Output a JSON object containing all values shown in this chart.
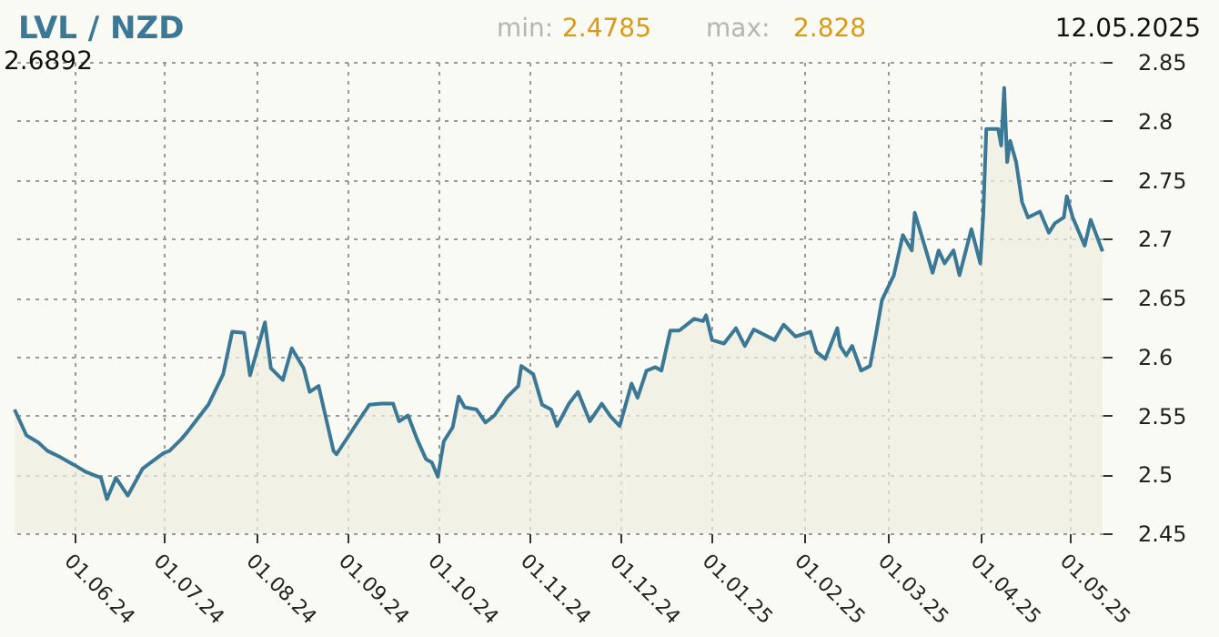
{
  "chart_data": {
    "type": "area",
    "title": "LVL / NZD",
    "annotations": [
      "min: 2.4785",
      "max: 2.828",
      "12.05.2025",
      "2.6892"
    ],
    "x": [
      "2024-05-12",
      "2024-05-16",
      "2024-05-20",
      "2024-05-23",
      "2024-05-27",
      "2024-06-01",
      "2024-06-05",
      "2024-06-10",
      "2024-06-12",
      "2024-06-15",
      "2024-06-19",
      "2024-06-24",
      "2024-07-01",
      "2024-07-03",
      "2024-07-07",
      "2024-07-09",
      "2024-07-12",
      "2024-07-16",
      "2024-07-21",
      "2024-07-24",
      "2024-07-28",
      "2024-07-30",
      "2024-08-04",
      "2024-08-06",
      "2024-08-10",
      "2024-08-13",
      "2024-08-17",
      "2024-08-19",
      "2024-08-22",
      "2024-08-27",
      "2024-08-28",
      "2024-09-04",
      "2024-09-08",
      "2024-09-12",
      "2024-09-16",
      "2024-09-18",
      "2024-09-21",
      "2024-09-24",
      "2024-09-27",
      "2024-09-29",
      "2024-10-01",
      "2024-10-03",
      "2024-10-06",
      "2024-10-08",
      "2024-10-10",
      "2024-10-14",
      "2024-10-17",
      "2024-10-20",
      "2024-10-24",
      "2024-10-28",
      "2024-10-29",
      "2024-11-02",
      "2024-11-05",
      "2024-11-08",
      "2024-11-10",
      "2024-11-14",
      "2024-11-17",
      "2024-11-21",
      "2024-11-25",
      "2024-11-28",
      "2024-12-01",
      "2024-12-03",
      "2024-12-05",
      "2024-12-07",
      "2024-12-10",
      "2024-12-13",
      "2024-12-15",
      "2024-12-18",
      "2024-12-21",
      "2024-12-26",
      "2024-12-29",
      "2024-12-30",
      "2025-01-01",
      "2025-01-05",
      "2025-01-09",
      "2025-01-12",
      "2025-01-15",
      "2025-01-22",
      "2025-01-25",
      "2025-01-29",
      "2025-02-03",
      "2025-02-05",
      "2025-02-08",
      "2025-02-12",
      "2025-02-13",
      "2025-02-15",
      "2025-02-17",
      "2025-02-20",
      "2025-02-23",
      "2025-02-25",
      "2025-02-27",
      "2025-03-03",
      "2025-03-06",
      "2025-03-09",
      "2025-03-10",
      "2025-03-12",
      "2025-03-16",
      "2025-03-18",
      "2025-03-20",
      "2025-03-23",
      "2025-03-25",
      "2025-03-29",
      "2025-04-01",
      "2025-04-02",
      "2025-04-03",
      "2025-04-07",
      "2025-04-08",
      "2025-04-09",
      "2025-04-10",
      "2025-04-11",
      "2025-04-13",
      "2025-04-15",
      "2025-04-17",
      "2025-04-21",
      "2025-04-24",
      "2025-04-26",
      "2025-04-29",
      "2025-04-30",
      "2025-05-02",
      "2025-05-06",
      "2025-05-08",
      "2025-05-12"
    ],
    "series": [
      {
        "color": "#3a7896",
        "values": [
          2.555,
          2.533,
          2.527,
          2.52,
          2.515,
          2.508,
          2.502,
          2.497,
          2.479,
          2.497,
          2.482,
          2.505,
          2.518,
          2.52,
          2.53,
          2.536,
          2.546,
          2.559,
          2.585,
          2.621,
          2.62,
          2.584,
          2.629,
          2.59,
          2.58,
          2.607,
          2.59,
          2.57,
          2.575,
          2.52,
          2.517,
          2.544,
          2.559,
          2.56,
          2.56,
          2.545,
          2.55,
          2.53,
          2.513,
          2.51,
          2.498,
          2.528,
          2.54,
          2.566,
          2.557,
          2.555,
          2.544,
          2.55,
          2.565,
          2.575,
          2.592,
          2.585,
          2.559,
          2.555,
          2.541,
          2.56,
          2.57,
          2.545,
          2.56,
          2.549,
          2.541,
          2.559,
          2.577,
          2.565,
          2.588,
          2.591,
          2.588,
          2.622,
          2.622,
          2.632,
          2.63,
          2.635,
          2.614,
          2.611,
          2.624,
          2.609,
          2.623,
          2.614,
          2.627,
          2.617,
          2.621,
          2.604,
          2.598,
          2.624,
          2.609,
          2.601,
          2.609,
          2.588,
          2.592,
          2.619,
          2.648,
          2.669,
          2.703,
          2.69,
          2.722,
          2.705,
          2.671,
          2.69,
          2.679,
          2.69,
          2.669,
          2.708,
          2.679,
          2.721,
          2.793,
          2.793,
          2.779,
          2.828,
          2.765,
          2.783,
          2.765,
          2.731,
          2.718,
          2.723,
          2.705,
          2.713,
          2.718,
          2.736,
          2.718,
          2.694,
          2.716,
          2.6892
        ]
      }
    ],
    "xlim": [
      "2024-05-12",
      "2025-05-12"
    ],
    "xticks": [
      {
        "value": "2024-06-01",
        "label": "01.06.24"
      },
      {
        "value": "2024-07-01",
        "label": "01.07.24"
      },
      {
        "value": "2024-08-01",
        "label": "01.08.24"
      },
      {
        "value": "2024-09-01",
        "label": "01.09.24"
      },
      {
        "value": "2024-10-01",
        "label": "01.10.24"
      },
      {
        "value": "2024-11-01",
        "label": "01.11.24"
      },
      {
        "value": "2024-12-01",
        "label": "01.12.24"
      },
      {
        "value": "2025-01-01",
        "label": "01.01.25"
      },
      {
        "value": "2025-02-01",
        "label": "01.02.25"
      },
      {
        "value": "2025-03-01",
        "label": "01.03.25"
      },
      {
        "value": "2025-04-01",
        "label": "01.04.25"
      },
      {
        "value": "2025-05-01",
        "label": "01.05.25"
      }
    ],
    "ylim": [
      2.45,
      2.85
    ],
    "yticks": [
      2.45,
      2.5,
      2.55,
      2.6,
      2.65,
      2.7,
      2.75,
      2.8,
      2.85
    ],
    "grid": true
  }
}
